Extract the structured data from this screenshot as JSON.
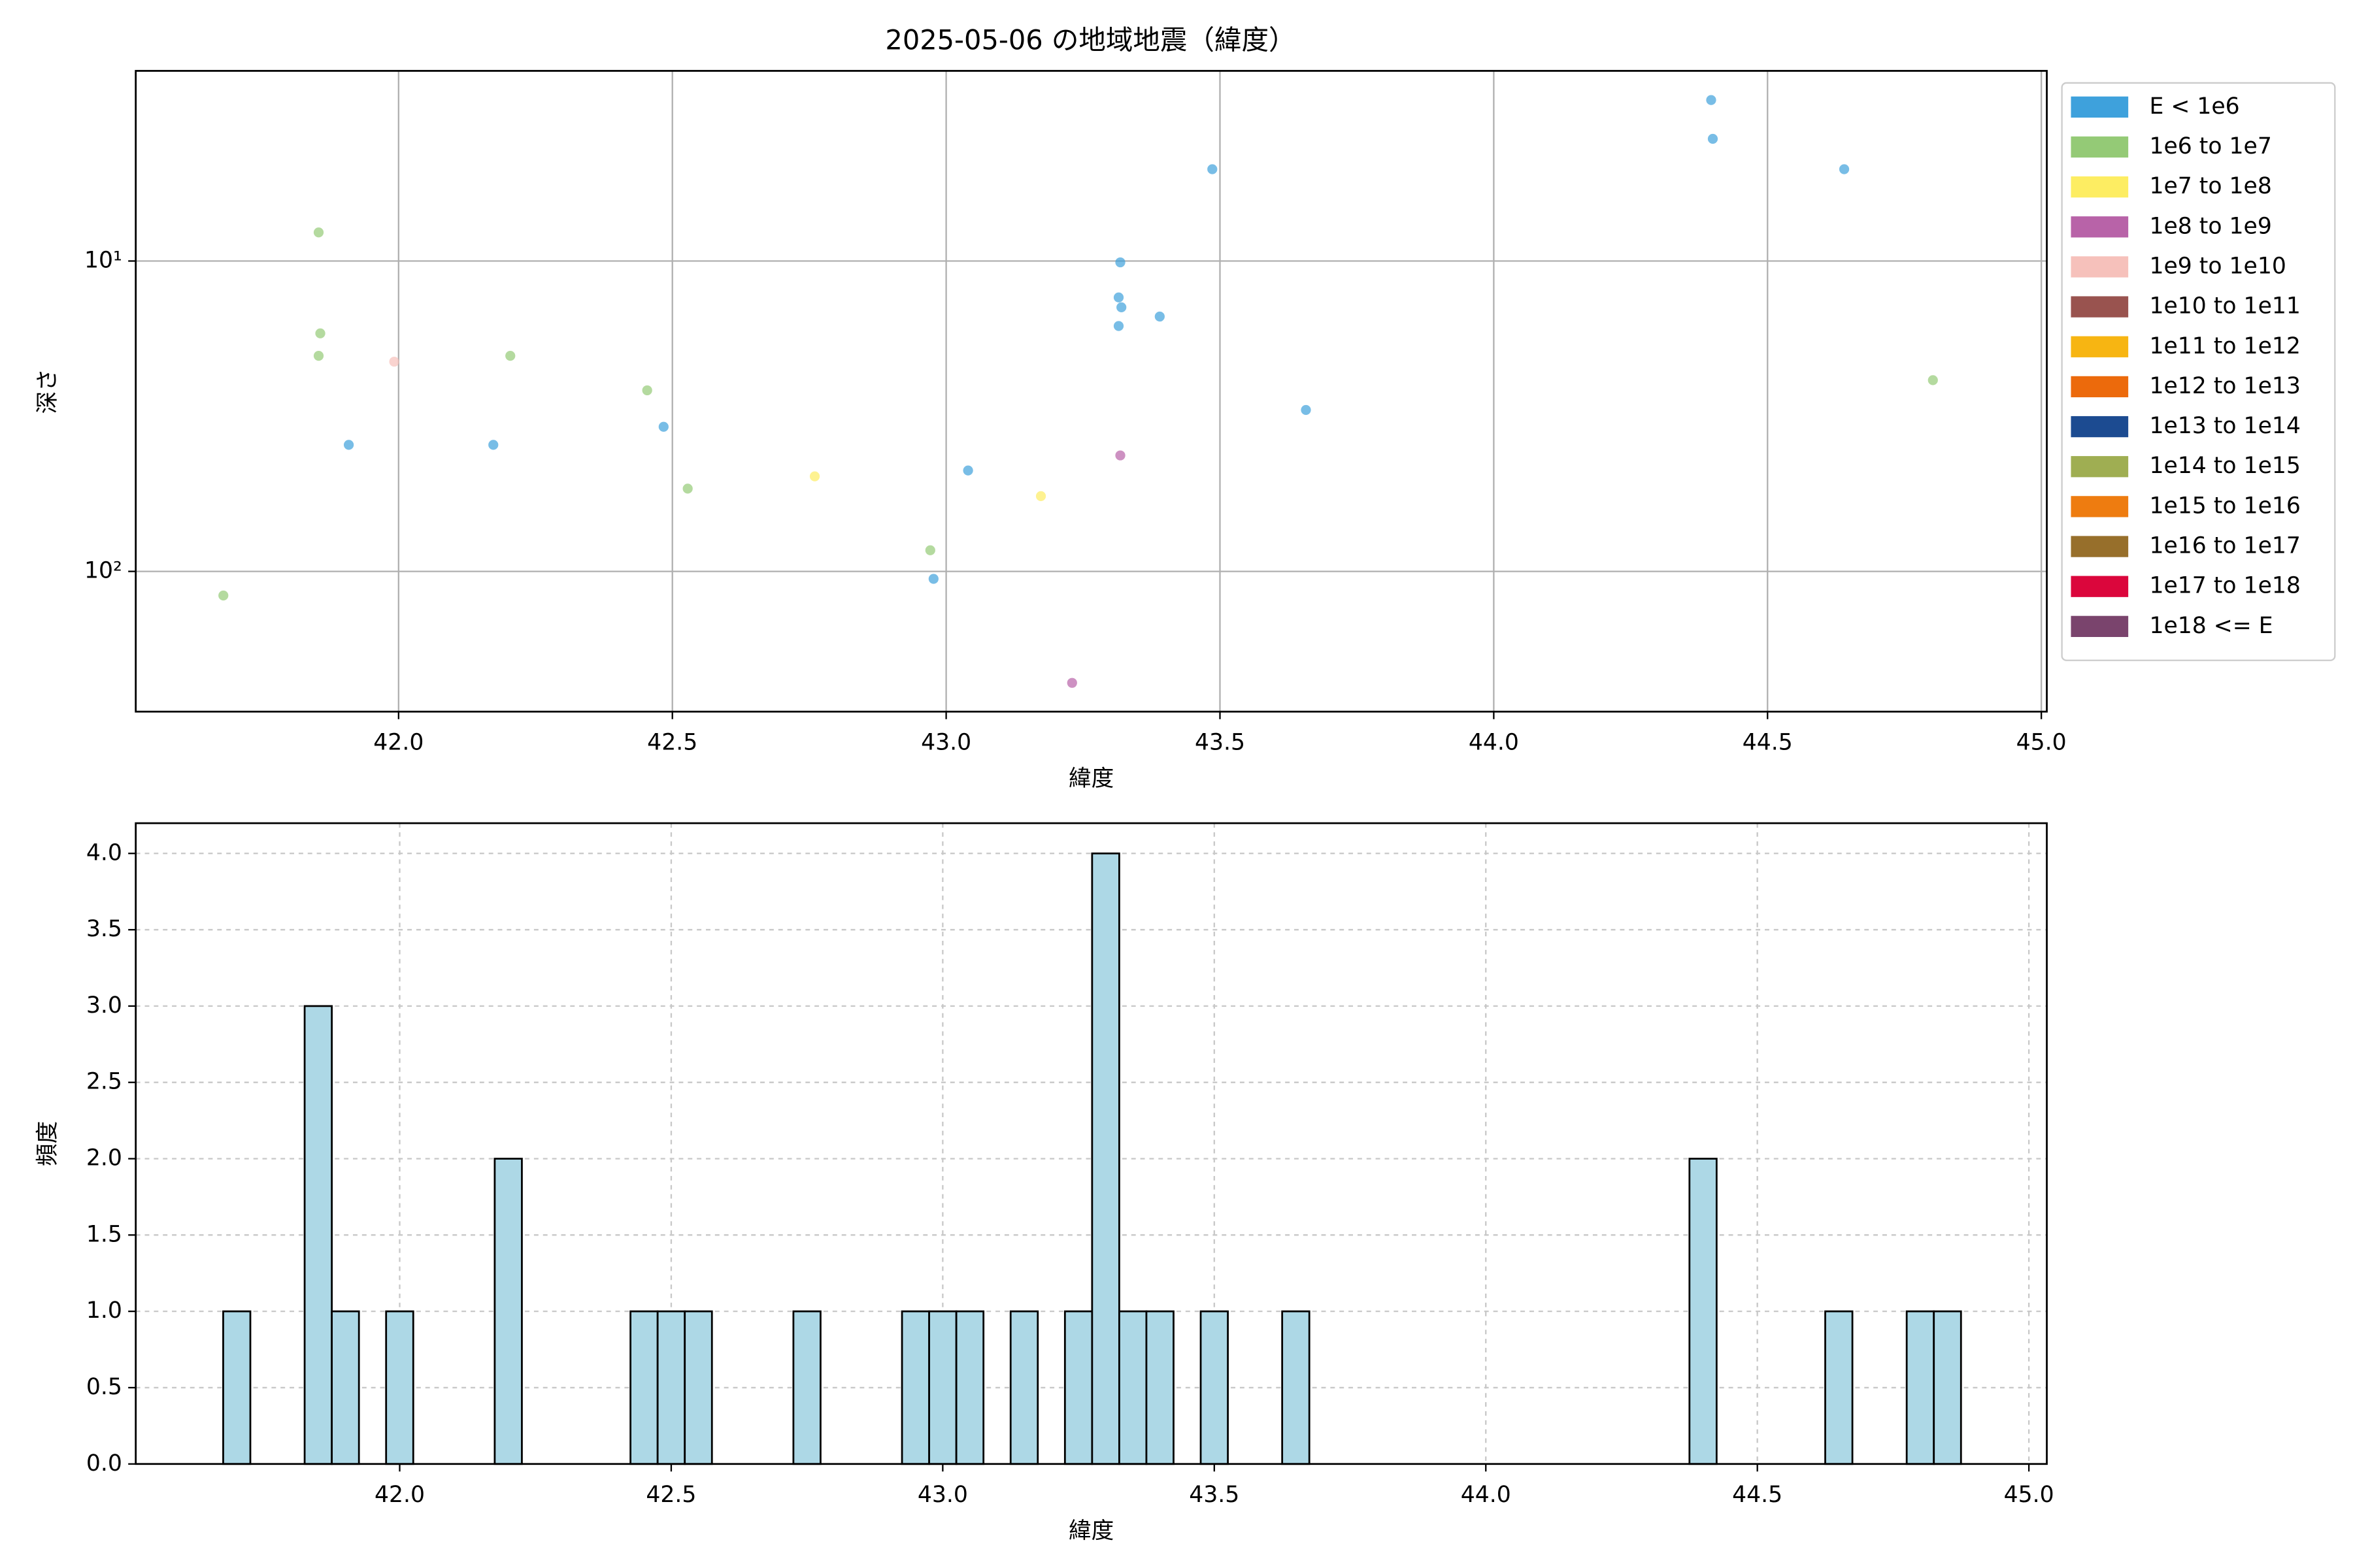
{
  "chart_data": [
    {
      "type": "scatter",
      "title": "2025-05-06 の地域地震（緯度）",
      "xlabel": "緯度",
      "ylabel": "深さ",
      "log_y": true,
      "grid": true,
      "grid_style": "solid",
      "legend": "outside right",
      "alpha": 0.7,
      "xlim": [
        41.52,
        45.01
      ],
      "ylim": [
        283,
        2.44
      ],
      "xticks": [
        {
          "value": 42,
          "label": "42.0"
        },
        {
          "value": 42.5,
          "label": "42.5"
        },
        {
          "value": 43,
          "label": "43.0"
        },
        {
          "value": 43.5,
          "label": "43.5"
        },
        {
          "value": 44,
          "label": "44.0"
        },
        {
          "value": 44.5,
          "label": "44.5"
        },
        {
          "value": 45,
          "label": "45.0"
        }
      ],
      "yticks": [
        {
          "value": 10,
          "label": "10¹"
        },
        {
          "value": 100,
          "label": "10²"
        }
      ],
      "series": [
        {
          "name": "E < 1e6",
          "color": "#3ea1dc",
          "x": [
            44.397,
            44.4,
            44.64,
            43.486,
            43.318,
            43.315,
            43.32,
            43.315,
            43.39,
            43.657,
            41.909,
            42.173,
            42.484,
            43.04,
            42.977
          ],
          "values": [
            3.03,
            4.04,
            5.06,
            5.06,
            10.1,
            13.1,
            14.1,
            16.2,
            15.1,
            30.2,
            39.1,
            39.1,
            34.2,
            47.3,
            105.7
          ]
        },
        {
          "name": "1e6 to 1e7",
          "color": "#94ca76",
          "x": [
            41.854,
            41.857,
            41.854,
            42.204,
            42.454,
            42.528,
            42.971,
            41.68,
            44.802
          ],
          "values": [
            8.09,
            17.1,
            20.2,
            20.2,
            26.1,
            54.1,
            85.5,
            119.6,
            24.2
          ]
        },
        {
          "name": "1e7 to 1e8",
          "color": "#fded62",
          "x": [
            42.76,
            43.173
          ],
          "values": [
            49.4,
            57.2
          ]
        },
        {
          "name": "1e8 to 1e9",
          "color": "#b863a8",
          "x": [
            43.318,
            43.23
          ],
          "values": [
            42.3,
            228.6
          ]
        },
        {
          "name": "1e9 to 1e10",
          "color": "#f6c1bb",
          "x": [
            41.992
          ],
          "values": [
            21.1
          ]
        },
        {
          "name": "1e10 to 1e11",
          "color": "#99534f",
          "x": [],
          "values": []
        },
        {
          "name": "1e11 to 1e12",
          "color": "#f7b512",
          "x": [],
          "values": []
        },
        {
          "name": "1e12 to 1e13",
          "color": "#ec6a0c",
          "x": [],
          "values": []
        },
        {
          "name": "1e13 to 1e14",
          "color": "#1c4b91",
          "x": [],
          "values": []
        },
        {
          "name": "1e14 to 1e15",
          "color": "#9fae52",
          "x": [],
          "values": []
        },
        {
          "name": "1e15 to 1e16",
          "color": "#ee7c10",
          "x": [],
          "values": []
        },
        {
          "name": "1e16 to 1e17",
          "color": "#976f2b",
          "x": [],
          "values": []
        },
        {
          "name": "1e17 to 1e18",
          "color": "#db063c",
          "x": [],
          "values": []
        },
        {
          "name": "1e18 <= E",
          "color": "#7a446d",
          "x": [],
          "values": []
        }
      ]
    },
    {
      "type": "histogram",
      "xlabel": "緯度",
      "ylabel": "頻度",
      "color": "#add8e6",
      "edgecolor": "#000000",
      "grid": true,
      "grid_style": "dashed",
      "xlim": [
        41.514,
        45.033
      ],
      "ylim": [
        0,
        4.198
      ],
      "xticks": [
        {
          "value": 42,
          "label": "42.0"
        },
        {
          "value": 42.5,
          "label": "42.5"
        },
        {
          "value": 43,
          "label": "43.0"
        },
        {
          "value": 43.5,
          "label": "43.5"
        },
        {
          "value": 44,
          "label": "44.0"
        },
        {
          "value": 44.5,
          "label": "44.5"
        },
        {
          "value": 45,
          "label": "45.0"
        }
      ],
      "yticks": [
        {
          "value": 0,
          "label": "0.0"
        },
        {
          "value": 0.5,
          "label": "0.5"
        },
        {
          "value": 1,
          "label": "1.0"
        },
        {
          "value": 1.5,
          "label": "1.5"
        },
        {
          "value": 2,
          "label": "2.0"
        },
        {
          "value": 2.5,
          "label": "2.5"
        },
        {
          "value": 3,
          "label": "3.0"
        },
        {
          "value": 3.5,
          "label": "3.5"
        },
        {
          "value": 4,
          "label": "4.0"
        }
      ],
      "bins": [
        41.675,
        41.725,
        41.775,
        41.825,
        41.875,
        41.925,
        41.975,
        42.025,
        42.075,
        42.125,
        42.175,
        42.225,
        42.275,
        42.325,
        42.375,
        42.425,
        42.475,
        42.525,
        42.575,
        42.625,
        42.675,
        42.725,
        42.775,
        42.825,
        42.875,
        42.925,
        42.975,
        43.025,
        43.075,
        43.125,
        43.175,
        43.225,
        43.275,
        43.325,
        43.375,
        43.425,
        43.475,
        43.525,
        43.575,
        43.625,
        43.675,
        43.725,
        43.775,
        43.825,
        43.875,
        43.925,
        43.975,
        44.025,
        44.075,
        44.125,
        44.175,
        44.225,
        44.275,
        44.325,
        44.375,
        44.425,
        44.475,
        44.525,
        44.575,
        44.625,
        44.675,
        44.725,
        44.775,
        44.825,
        44.875
      ],
      "values": [
        1,
        0,
        0,
        3,
        1,
        0,
        1,
        0,
        0,
        0,
        2,
        0,
        0,
        0,
        0,
        1,
        1,
        1,
        0,
        0,
        0,
        1,
        0,
        0,
        0,
        1,
        1,
        1,
        0,
        1,
        0,
        1,
        4,
        1,
        1,
        0,
        1,
        0,
        0,
        1,
        0,
        0,
        0,
        0,
        0,
        0,
        0,
        0,
        0,
        0,
        0,
        0,
        0,
        0,
        2,
        0,
        0,
        0,
        0,
        1,
        0,
        0,
        1,
        1
      ]
    }
  ]
}
